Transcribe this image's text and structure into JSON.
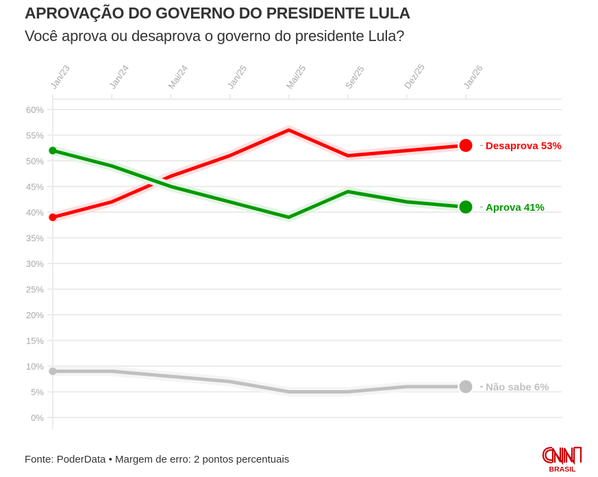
{
  "header": {
    "title": "APROVAÇÃO DO GOVERNO DO PRESIDENTE LULA",
    "subtitle": "Você aprova ou desaprova o governo do presidente Lula?"
  },
  "footer": {
    "source": "Fonte: PoderData • Margem de erro: 2 pontos percentuais"
  },
  "logo": {
    "brand": "CNN",
    "sub": "BRASIL",
    "color": "#cc0000"
  },
  "chart_data": {
    "type": "line",
    "title": "APROVAÇÃO DO GOVERNO DO PRESIDENTE LULA",
    "subtitle": "Você aprova ou desaprova o governo do presidente Lula?",
    "xlabel": "",
    "ylabel": "",
    "categories": [
      "Jan/23",
      "Jan/24",
      "Mai/24",
      "Jan/25",
      "Mai/25",
      "Set/25",
      "Dez/25",
      "Jan/26"
    ],
    "ylim": [
      0,
      60
    ],
    "yticks": [
      0,
      5,
      10,
      15,
      20,
      25,
      30,
      35,
      40,
      45,
      50,
      55,
      60
    ],
    "ytick_labels": [
      "0%",
      "5%",
      "10%",
      "15%",
      "20%",
      "25%",
      "30%",
      "35%",
      "40%",
      "45%",
      "50%",
      "55%",
      "60%"
    ],
    "grid": true,
    "x_axis_position": "top",
    "series": [
      {
        "name": "Desaprova",
        "end_label": "Desaprova 53%",
        "color": "#ff0000",
        "halo": "#ffe0e0",
        "values": [
          39,
          42,
          47,
          51,
          56,
          51,
          52,
          53
        ]
      },
      {
        "name": "Aprova",
        "end_label": "Aprova 41%",
        "color": "#009900",
        "halo": "#e3f4e3",
        "values": [
          52,
          49,
          45,
          42,
          39,
          44,
          42,
          41
        ]
      },
      {
        "name": "Não sabe",
        "end_label": "Não sabe 6%",
        "color": "#c0c0c0",
        "halo": "#f5f5f5",
        "values": [
          9,
          9,
          8,
          7,
          5,
          5,
          6,
          6
        ]
      }
    ],
    "legend": "end-of-line labels"
  }
}
